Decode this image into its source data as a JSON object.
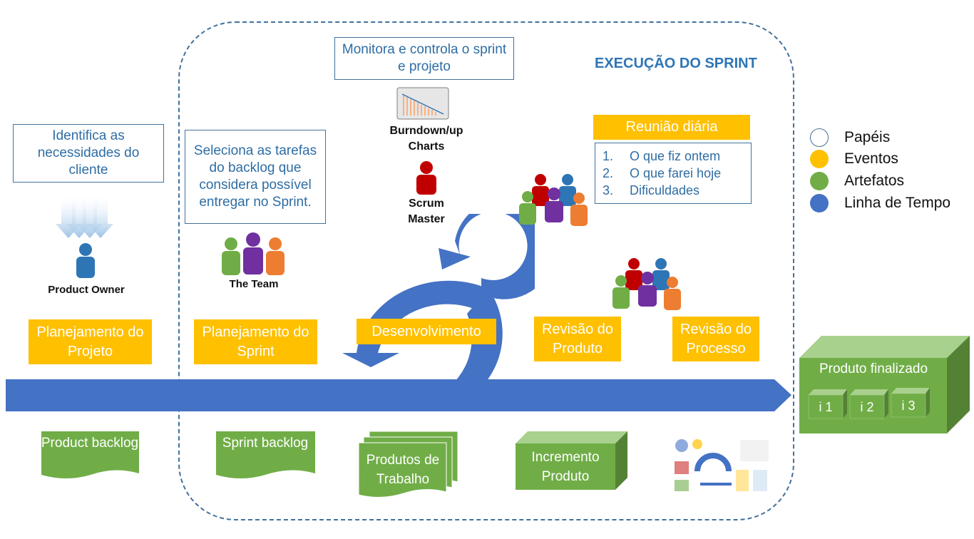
{
  "sprint_title": "EXECUÇÃO DO SPRINT",
  "notes": {
    "identifica": "Identifica as necessidades do cliente",
    "seleciona": "Seleciona as tarefas do backlog que considera possível entregar no Sprint.",
    "monitora": "Monitora e controla o sprint e projeto"
  },
  "roles": {
    "product_owner": "Product Owner",
    "the_team": "The Team",
    "burndown": "Burndown/up Charts",
    "scrum_master": "Scrum Master"
  },
  "events": {
    "planejamento_projeto": "Planejamento do Projeto",
    "planejamento_sprint": "Planejamento do Sprint",
    "desenvolvimento": "Desenvolvimento",
    "revisao_produto": "Revisão do Produto",
    "revisao_processo": "Revisão do Processo",
    "reuniao_diaria": "Reunião diária"
  },
  "daily_questions": [
    {
      "num": "1.",
      "text": "O que fiz ontem"
    },
    {
      "num": "2.",
      "text": "O que farei hoje"
    },
    {
      "num": "3.",
      "text": "Dificuldades"
    }
  ],
  "artifacts": {
    "product_backlog": "Product backlog",
    "sprint_backlog": "Sprint backlog",
    "produtos_trabalho": "Produtos de Trabalho",
    "incremento": "Incremento Produto",
    "produto_finalizado": "Produto finalizado",
    "increments": [
      "i 1",
      "i 2",
      "i 3"
    ]
  },
  "legend": [
    {
      "label": "Papéis",
      "color": "#ffffff",
      "border": "#41719c"
    },
    {
      "label": "Eventos",
      "color": "#ffc000",
      "border": "#ffc000"
    },
    {
      "label": "Artefatos",
      "color": "#70ad47",
      "border": "#70ad47"
    },
    {
      "label": "Linha de Tempo",
      "color": "#4472c4",
      "border": "#4472c4"
    }
  ],
  "colors": {
    "blue": "#4472c4",
    "yellow": "#ffc000",
    "green": "#70ad47",
    "dark_green": "#548235",
    "text_blue": "#2e6da4"
  }
}
